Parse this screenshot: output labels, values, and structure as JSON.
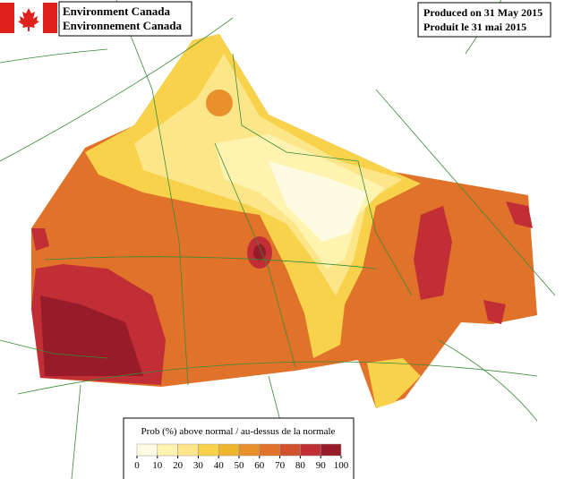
{
  "header": {
    "agency_en": "Environment Canada",
    "agency_fr": "Environnement Canada",
    "produced_en": "Produced on 31 May 2015",
    "produced_fr": "Produit le 31 mai 2015"
  },
  "legend": {
    "title": "Prob (%) above normal / au-dessus de la normale",
    "ticks": [
      0,
      10,
      20,
      30,
      40,
      50,
      60,
      70,
      80,
      90,
      100
    ],
    "colors": [
      "#fffbe2",
      "#fff3b0",
      "#fde68a",
      "#f7d24a",
      "#efb52e",
      "#e8912c",
      "#e07229",
      "#d2502b",
      "#c22e35",
      "#981b2a"
    ]
  }
}
